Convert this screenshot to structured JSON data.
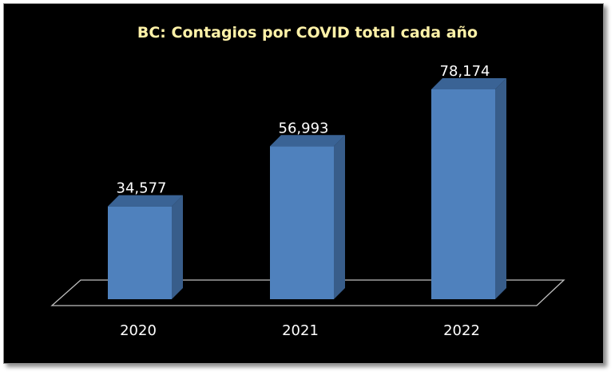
{
  "chart_data": {
    "type": "bar",
    "title": "BC: Contagios por COVID  total cada año",
    "categories": [
      "2020",
      "2021",
      "2022"
    ],
    "values": [
      34577,
      56993,
      78174
    ],
    "data_labels": [
      "34,577",
      "56,993",
      "78,174"
    ],
    "xlabel": "",
    "ylabel": "",
    "ylim": [
      0,
      90000
    ],
    "grid": false,
    "legend": "none",
    "style": "3d-column"
  },
  "colors": {
    "background": "#000000",
    "bar_front": "#4f81bd",
    "bar_side": "#385d8a",
    "bar_top": "#3a6395",
    "title": "#fff2a8",
    "text": "#ffffff",
    "floor_stroke": "#bfbfbf"
  }
}
